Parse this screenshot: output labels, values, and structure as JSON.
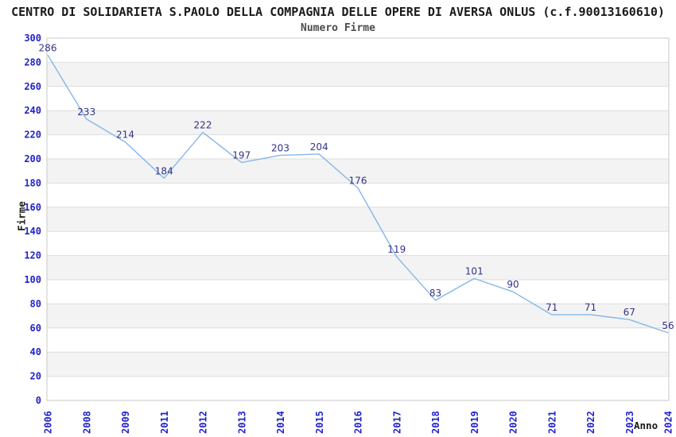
{
  "header": {
    "title": "CENTRO DI SOLIDARIETA S.PAOLO DELLA COMPAGNIA DELLE OPERE DI AVERSA ONLUS (c.f.90013160610)",
    "subtitle": "Numero Firme"
  },
  "chart_data": {
    "type": "line",
    "title": "Numero Firme",
    "categories": [
      "2006",
      "2008",
      "2009",
      "2011",
      "2012",
      "2013",
      "2014",
      "2015",
      "2016",
      "2017",
      "2018",
      "2019",
      "2020",
      "2021",
      "2022",
      "2023",
      "2024"
    ],
    "values": [
      286,
      233,
      214,
      184,
      222,
      197,
      203,
      204,
      176,
      119,
      83,
      101,
      90,
      71,
      71,
      67,
      56
    ],
    "xlabel": "Anno",
    "ylabel": "Firme",
    "ylim": [
      0,
      300
    ],
    "ytick_interval": 20,
    "ytick_labels": [
      "0",
      "20",
      "40",
      "60",
      "80",
      "100",
      "120",
      "140",
      "160",
      "180",
      "200",
      "220",
      "240",
      "260",
      "280",
      "300"
    ],
    "grid": "horizontal-bands-alternating",
    "legend": "none",
    "markers": "none",
    "data_labels_shown": true,
    "colors": {
      "line": "#85B7E9",
      "data_label": "#333388",
      "tick_label": "#2222CC",
      "band": "#F3F3F3",
      "gridline": "#DDDDDD",
      "plot_border": "#C9C9C9",
      "title": "#1A1A1A",
      "subtitle": "#4D4D4D",
      "axis_title": "#1A1A1A",
      "background": "#FFFFFF"
    }
  }
}
